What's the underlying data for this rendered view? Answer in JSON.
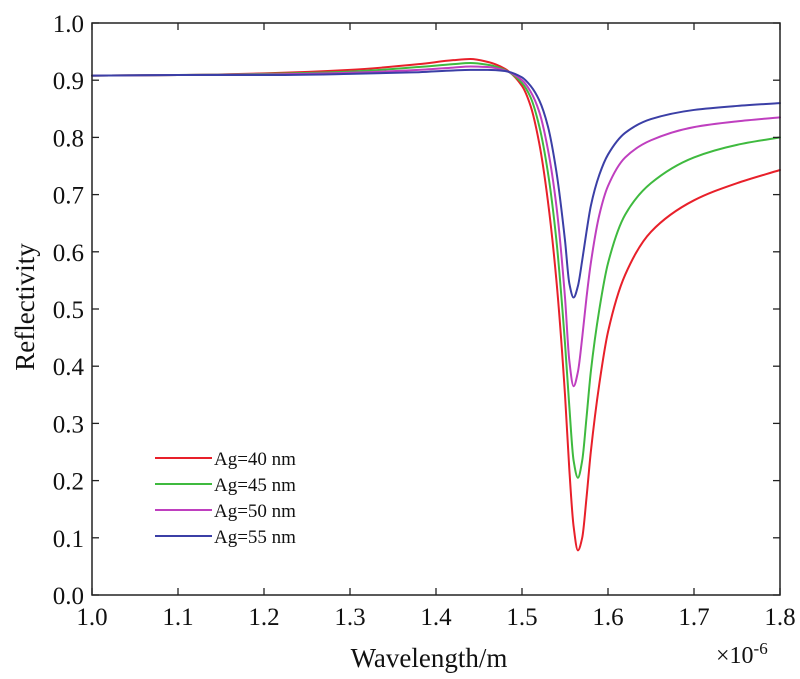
{
  "chart_data": {
    "type": "line",
    "title": "",
    "xlabel": "Wavelength/m",
    "ylabel": "Reflectivity",
    "x_multiplier": {
      "base": "×10",
      "exponent": "-6"
    },
    "xlim": [
      1.0,
      1.8
    ],
    "ylim": [
      0.0,
      1.0
    ],
    "x_ticks": [
      "1.0",
      "1.1",
      "1.2",
      "1.3",
      "1.4",
      "1.5",
      "1.6",
      "1.7",
      "1.8"
    ],
    "y_ticks": [
      "0.0",
      "0.1",
      "0.2",
      "0.3",
      "0.4",
      "0.5",
      "0.6",
      "0.7",
      "0.8",
      "0.9",
      "1.0"
    ],
    "grid": false,
    "legend_position": "bottom-left",
    "series": [
      {
        "name": "Ag=40 nm",
        "color": "#e8202a",
        "x": [
          1.0,
          1.1,
          1.2,
          1.3,
          1.38,
          1.42,
          1.44,
          1.46,
          1.48,
          1.5,
          1.51,
          1.52,
          1.53,
          1.54,
          1.55,
          1.555,
          1.56,
          1.565,
          1.57,
          1.575,
          1.58,
          1.59,
          1.6,
          1.62,
          1.65,
          1.7,
          1.75,
          1.8
        ],
        "y": [
          0.908,
          0.909,
          0.912,
          0.918,
          0.928,
          0.935,
          0.937,
          0.932,
          0.92,
          0.89,
          0.855,
          0.79,
          0.69,
          0.55,
          0.35,
          0.22,
          0.12,
          0.078,
          0.1,
          0.17,
          0.25,
          0.37,
          0.46,
          0.56,
          0.635,
          0.69,
          0.72,
          0.743
        ]
      },
      {
        "name": "Ag=45 nm",
        "color": "#3fba3f",
        "x": [
          1.0,
          1.1,
          1.2,
          1.3,
          1.38,
          1.42,
          1.44,
          1.46,
          1.48,
          1.5,
          1.51,
          1.52,
          1.53,
          1.54,
          1.55,
          1.555,
          1.56,
          1.565,
          1.57,
          1.575,
          1.58,
          1.59,
          1.6,
          1.62,
          1.65,
          1.7,
          1.75,
          1.8
        ],
        "y": [
          0.908,
          0.909,
          0.911,
          0.915,
          0.923,
          0.928,
          0.93,
          0.927,
          0.918,
          0.895,
          0.87,
          0.82,
          0.74,
          0.62,
          0.44,
          0.33,
          0.235,
          0.205,
          0.235,
          0.31,
          0.39,
          0.5,
          0.58,
          0.665,
          0.72,
          0.765,
          0.787,
          0.8
        ]
      },
      {
        "name": "Ag=50 nm",
        "color": "#bf3fbf",
        "x": [
          1.0,
          1.1,
          1.2,
          1.3,
          1.38,
          1.42,
          1.44,
          1.46,
          1.48,
          1.5,
          1.51,
          1.52,
          1.53,
          1.54,
          1.55,
          1.555,
          1.56,
          1.565,
          1.57,
          1.575,
          1.58,
          1.59,
          1.6,
          1.62,
          1.65,
          1.7,
          1.75,
          1.8
        ],
        "y": [
          0.908,
          0.909,
          0.91,
          0.913,
          0.918,
          0.922,
          0.924,
          0.923,
          0.917,
          0.9,
          0.88,
          0.845,
          0.78,
          0.68,
          0.52,
          0.41,
          0.365,
          0.39,
          0.45,
          0.52,
          0.58,
          0.665,
          0.715,
          0.765,
          0.795,
          0.818,
          0.828,
          0.835
        ]
      },
      {
        "name": "Ag=55 nm",
        "color": "#3b3fa6",
        "x": [
          1.0,
          1.1,
          1.2,
          1.3,
          1.38,
          1.42,
          1.44,
          1.46,
          1.48,
          1.5,
          1.51,
          1.52,
          1.53,
          1.54,
          1.55,
          1.555,
          1.56,
          1.565,
          1.57,
          1.575,
          1.58,
          1.59,
          1.6,
          1.62,
          1.65,
          1.7,
          1.75,
          1.8
        ],
        "y": [
          0.908,
          0.909,
          0.909,
          0.911,
          0.914,
          0.917,
          0.918,
          0.918,
          0.916,
          0.905,
          0.89,
          0.865,
          0.82,
          0.74,
          0.62,
          0.545,
          0.52,
          0.54,
          0.585,
          0.635,
          0.68,
          0.735,
          0.77,
          0.808,
          0.832,
          0.848,
          0.855,
          0.86
        ]
      }
    ]
  }
}
